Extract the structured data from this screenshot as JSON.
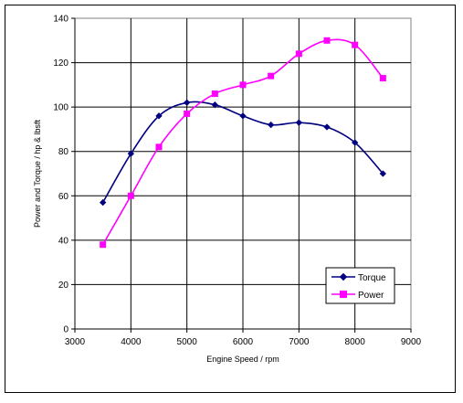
{
  "chart_data": {
    "type": "line",
    "title": "",
    "xlabel": "Engine Speed / rpm",
    "ylabel": "Power and Torque / hp & lbsft",
    "xlim": [
      3000,
      9000
    ],
    "ylim": [
      0,
      140
    ],
    "x_ticks": [
      "3000",
      "4000",
      "5000",
      "6000",
      "7000",
      "8000",
      "9000"
    ],
    "y_ticks": [
      "0",
      "20",
      "40",
      "60",
      "80",
      "100",
      "120",
      "140"
    ],
    "grid": true,
    "smooth": true,
    "legend_position": "bottom-right",
    "series": [
      {
        "name": "Torque",
        "color": "#000080",
        "marker": "diamond",
        "x": [
          3500,
          4000,
          4500,
          5000,
          5500,
          6000,
          6500,
          7000,
          7500,
          8000,
          8500
        ],
        "y": [
          57,
          79,
          96,
          102,
          101,
          96,
          92,
          93,
          91,
          84,
          70
        ]
      },
      {
        "name": "Power",
        "color": "#ff00ff",
        "marker": "square",
        "x": [
          3500,
          4000,
          4500,
          5000,
          5500,
          6000,
          6500,
          7000,
          7500,
          8000,
          8500
        ],
        "y": [
          38,
          60,
          82,
          97,
          106,
          110,
          114,
          124,
          130,
          128,
          113
        ]
      }
    ]
  }
}
